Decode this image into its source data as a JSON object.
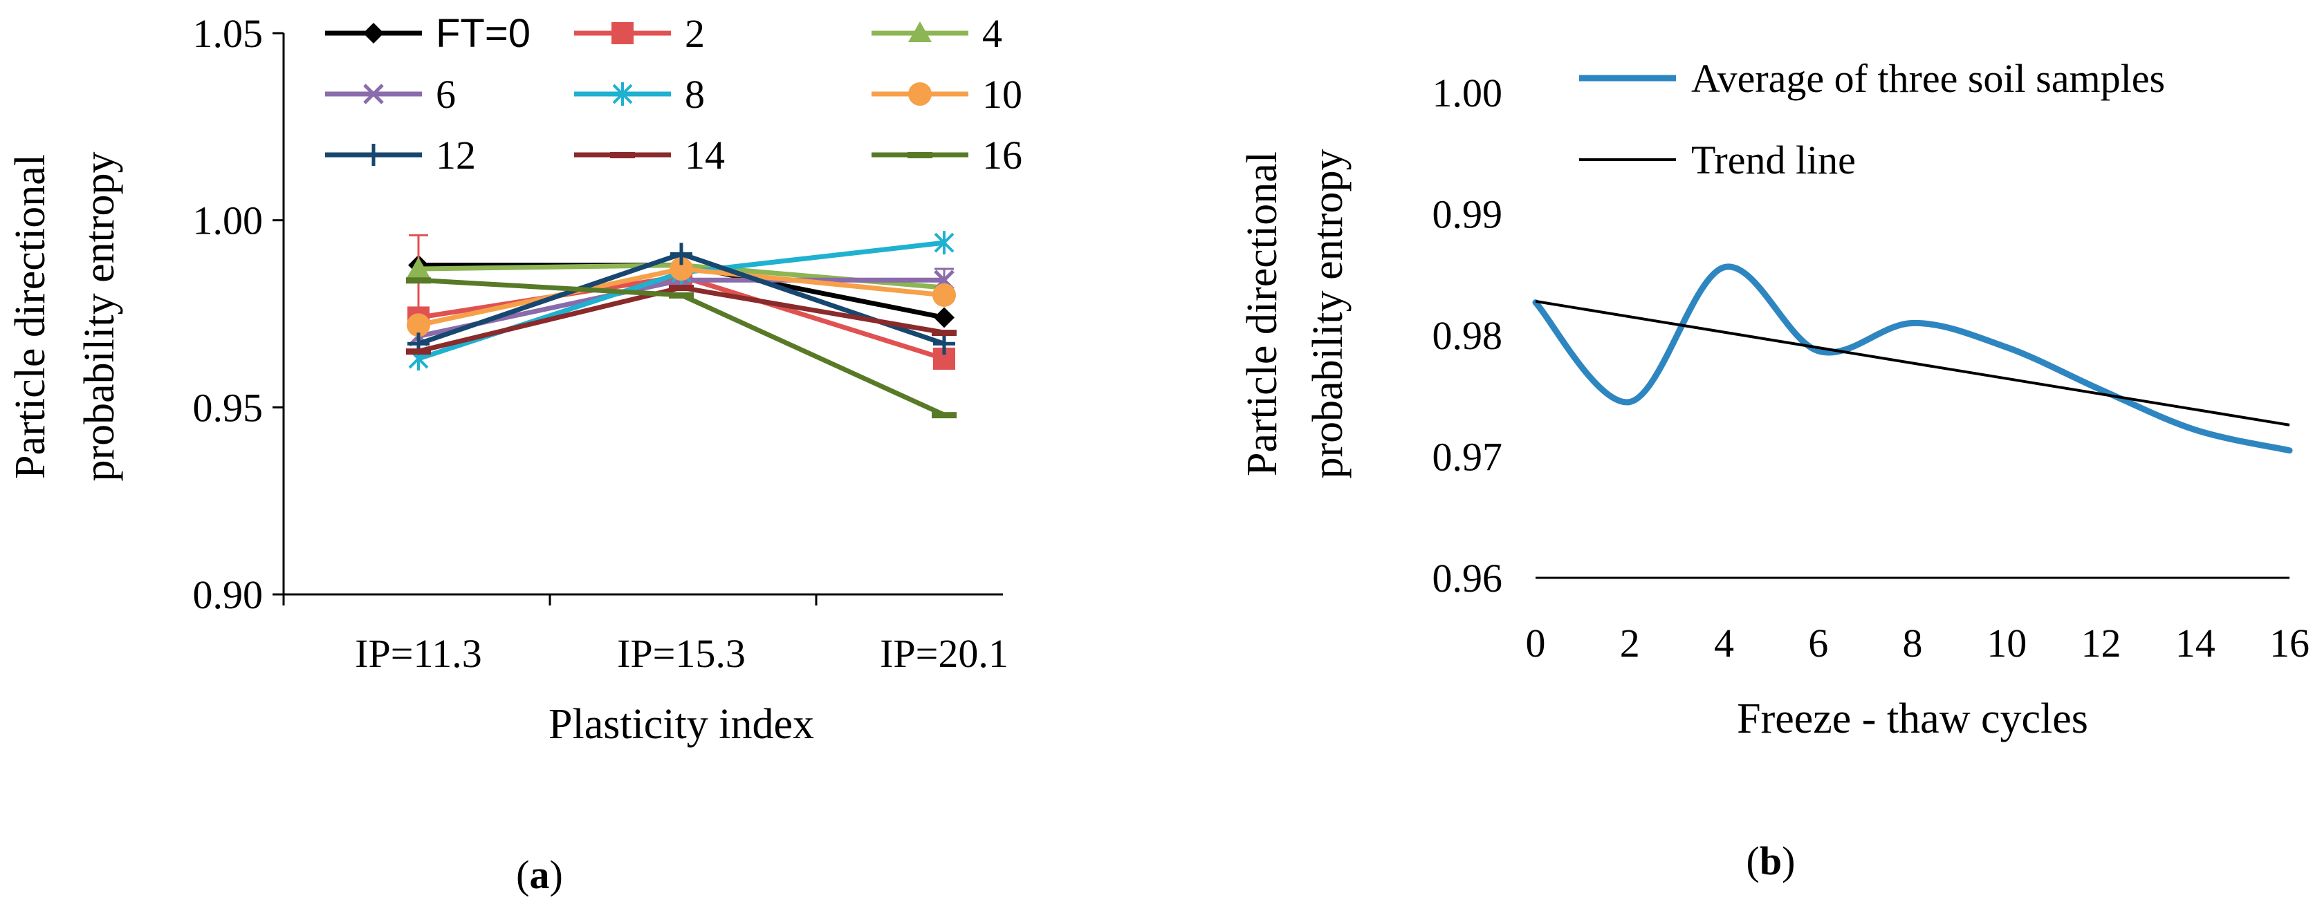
{
  "colors": {
    "FT=0": "#000000",
    "2": "#e05252",
    "4": "#8db553",
    "6": "#8a6bab",
    "8": "#1fb1d0",
    "10": "#f6a04a",
    "12": "#17476f",
    "14": "#8a2a2a",
    "16": "#587a27",
    "avg": "#2e86c1",
    "trend": "#000000"
  },
  "chart_data": [
    {
      "panel": "a",
      "panel_label": "a",
      "type": "line",
      "xlabel": "Plasticity index",
      "ylabel_line1": "Particle directional",
      "ylabel_line2": "probability entropy",
      "categories": [
        "IP=11.3",
        "IP=15.3",
        "IP=20.1"
      ],
      "ylim": [
        0.9,
        1.05
      ],
      "yticks": [
        "0.90",
        "0.95",
        "1.00",
        "1.05"
      ],
      "legend_position": "top",
      "series": [
        {
          "name": "FT=0",
          "marker": "diamond",
          "values": [
            0.988,
            0.988,
            0.974
          ]
        },
        {
          "name": "2",
          "marker": "square",
          "values": [
            0.974,
            0.985,
            0.963
          ],
          "error": [
            0.022,
            0,
            0
          ]
        },
        {
          "name": "4",
          "marker": "triangle",
          "values": [
            0.987,
            0.988,
            0.982
          ]
        },
        {
          "name": "6",
          "marker": "x",
          "values": [
            0.969,
            0.984,
            0.984
          ],
          "error": [
            0,
            0,
            0.003
          ]
        },
        {
          "name": "8",
          "marker": "star",
          "values": [
            0.963,
            0.986,
            0.994
          ]
        },
        {
          "name": "10",
          "marker": "circle",
          "values": [
            0.972,
            0.987,
            0.98
          ]
        },
        {
          "name": "12",
          "marker": "plus",
          "values": [
            0.967,
            0.991,
            0.967
          ]
        },
        {
          "name": "14",
          "marker": "dash",
          "values": [
            0.965,
            0.982,
            0.97
          ]
        },
        {
          "name": "16",
          "marker": "dash",
          "values": [
            0.984,
            0.98,
            0.948
          ]
        }
      ]
    },
    {
      "panel": "b",
      "panel_label": "b",
      "type": "line",
      "xlabel": "Freeze - thaw cycles",
      "ylabel_line1": "Particle directional",
      "ylabel_line2": "probability entropy",
      "xlim": [
        0,
        16
      ],
      "xticks": [
        "0",
        "2",
        "4",
        "6",
        "8",
        "10",
        "12",
        "14",
        "16"
      ],
      "ylim": [
        0.96,
        1.0
      ],
      "yticks": [
        "0.96",
        "0.97",
        "0.98",
        "0.99",
        "1.00"
      ],
      "legend_position": "top-right",
      "series": [
        {
          "name": "Average of three soil samples",
          "smooth": true,
          "x": [
            0,
            2,
            4,
            6,
            8,
            10,
            12,
            14,
            16
          ],
          "values": [
            0.9827,
            0.9745,
            0.9856,
            0.9787,
            0.981,
            0.979,
            0.9755,
            0.9722,
            0.9705
          ]
        },
        {
          "name": "Trend line",
          "x": [
            0,
            16
          ],
          "values": [
            0.9828,
            0.9726
          ]
        }
      ]
    }
  ]
}
